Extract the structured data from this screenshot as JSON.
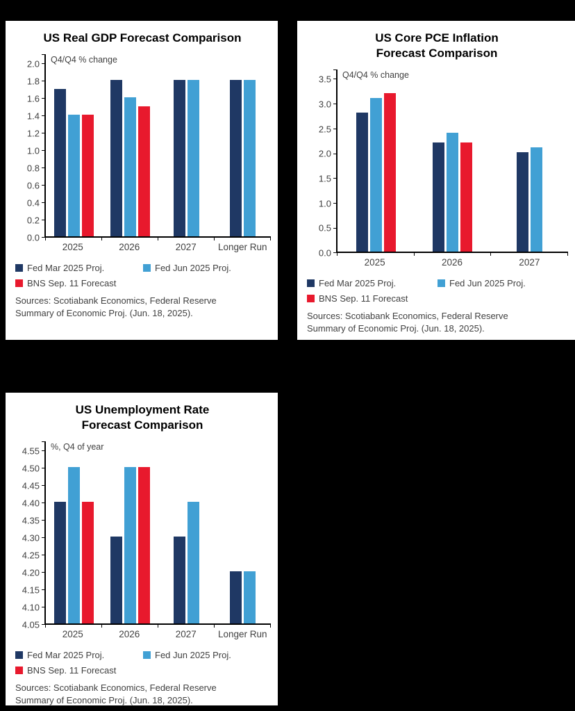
{
  "page": {
    "background": "#000000",
    "panel_background": "#FFFFFF"
  },
  "colors": {
    "series_dark_blue": "#1F3864",
    "series_light_blue": "#41A0D4",
    "series_red": "#E8192D",
    "axis": "#000000",
    "text": "#404040"
  },
  "legend": {
    "items": [
      {
        "label": "Fed Mar 2025 Proj.",
        "color": "#1F3864"
      },
      {
        "label": "Fed Jun 2025 Proj.",
        "color": "#41A0D4"
      },
      {
        "label": "BNS Sep. 11 Forecast",
        "color": "#E8192D"
      }
    ]
  },
  "sources": "Sources: Scotiabank Economics, Federal Reserve\nSummary of Economic Proj. (Jun. 18, 2025).",
  "chart_data": [
    {
      "id": "gdp",
      "type": "bar",
      "title": "US Real GDP Forecast Comparison",
      "axis_note": "Q4/Q4 % change",
      "categories": [
        "2025",
        "2026",
        "2027",
        "Longer Run"
      ],
      "series": [
        {
          "name": "Fed Mar 2025 Proj.",
          "color": "#1F3864",
          "values": [
            1.7,
            1.8,
            1.8,
            1.8
          ]
        },
        {
          "name": "Fed Jun 2025 Proj.",
          "color": "#41A0D4",
          "values": [
            1.4,
            1.6,
            1.8,
            1.8
          ]
        },
        {
          "name": "BNS Sep. 11 Forecast",
          "color": "#E8192D",
          "values": [
            1.4,
            1.5,
            null,
            null
          ]
        }
      ],
      "ylim": [
        0.0,
        2.0
      ],
      "ytick_values": [
        2.0,
        1.8,
        1.6,
        1.4,
        1.2,
        1.0,
        0.8,
        0.6,
        0.4,
        0.2,
        0.0
      ],
      "ytick_labels": [
        "2.0",
        "1.8",
        "1.6",
        "1.4",
        "1.2",
        "1.0",
        "0.8",
        "0.6",
        "0.4",
        "0.2",
        "0.0"
      ],
      "grid": false,
      "legend_position": "bottom"
    },
    {
      "id": "pce",
      "type": "bar",
      "title": "US Core PCE Inflation\nForecast Comparison",
      "axis_note": "Q4/Q4 % change",
      "categories": [
        "2025",
        "2026",
        "2027"
      ],
      "series": [
        {
          "name": "Fed Mar 2025 Proj.",
          "color": "#1F3864",
          "values": [
            2.8,
            2.2,
            2.0
          ]
        },
        {
          "name": "Fed Jun 2025 Proj.",
          "color": "#41A0D4",
          "values": [
            3.1,
            2.4,
            2.1
          ]
        },
        {
          "name": "BNS Sep. 11 Forecast",
          "color": "#E8192D",
          "values": [
            3.2,
            2.2,
            null
          ]
        }
      ],
      "ylim": [
        0.0,
        3.5
      ],
      "ytick_values": [
        3.5,
        3.0,
        2.5,
        2.0,
        1.5,
        1.0,
        0.5,
        0.0
      ],
      "ytick_labels": [
        "3.5",
        "3.0",
        "2.5",
        "2.0",
        "1.5",
        "1.0",
        "0.5",
        "0.0"
      ],
      "grid": false,
      "legend_position": "bottom"
    },
    {
      "id": "unemployment",
      "type": "bar",
      "title": "US Unemployment Rate\nForecast Comparison",
      "axis_note": "%, Q4 of year",
      "categories": [
        "2025",
        "2026",
        "2027",
        "Longer Run"
      ],
      "series": [
        {
          "name": "Fed Mar 2025 Proj.",
          "color": "#1F3864",
          "values": [
            4.4,
            4.3,
            4.3,
            4.2
          ]
        },
        {
          "name": "Fed Jun 2025 Proj.",
          "color": "#41A0D4",
          "values": [
            4.5,
            4.5,
            4.4,
            4.2
          ]
        },
        {
          "name": "BNS Sep. 11 Forecast",
          "color": "#E8192D",
          "values": [
            4.4,
            4.5,
            null,
            null
          ]
        }
      ],
      "ylim": [
        4.05,
        4.55
      ],
      "ytick_values": [
        4.55,
        4.5,
        4.45,
        4.4,
        4.35,
        4.3,
        4.25,
        4.2,
        4.15,
        4.1,
        4.05
      ],
      "ytick_labels": [
        "4.55",
        "4.50",
        "4.45",
        "4.40",
        "4.35",
        "4.30",
        "4.25",
        "4.20",
        "4.15",
        "4.10",
        "4.05"
      ],
      "grid": false,
      "legend_position": "bottom"
    }
  ]
}
